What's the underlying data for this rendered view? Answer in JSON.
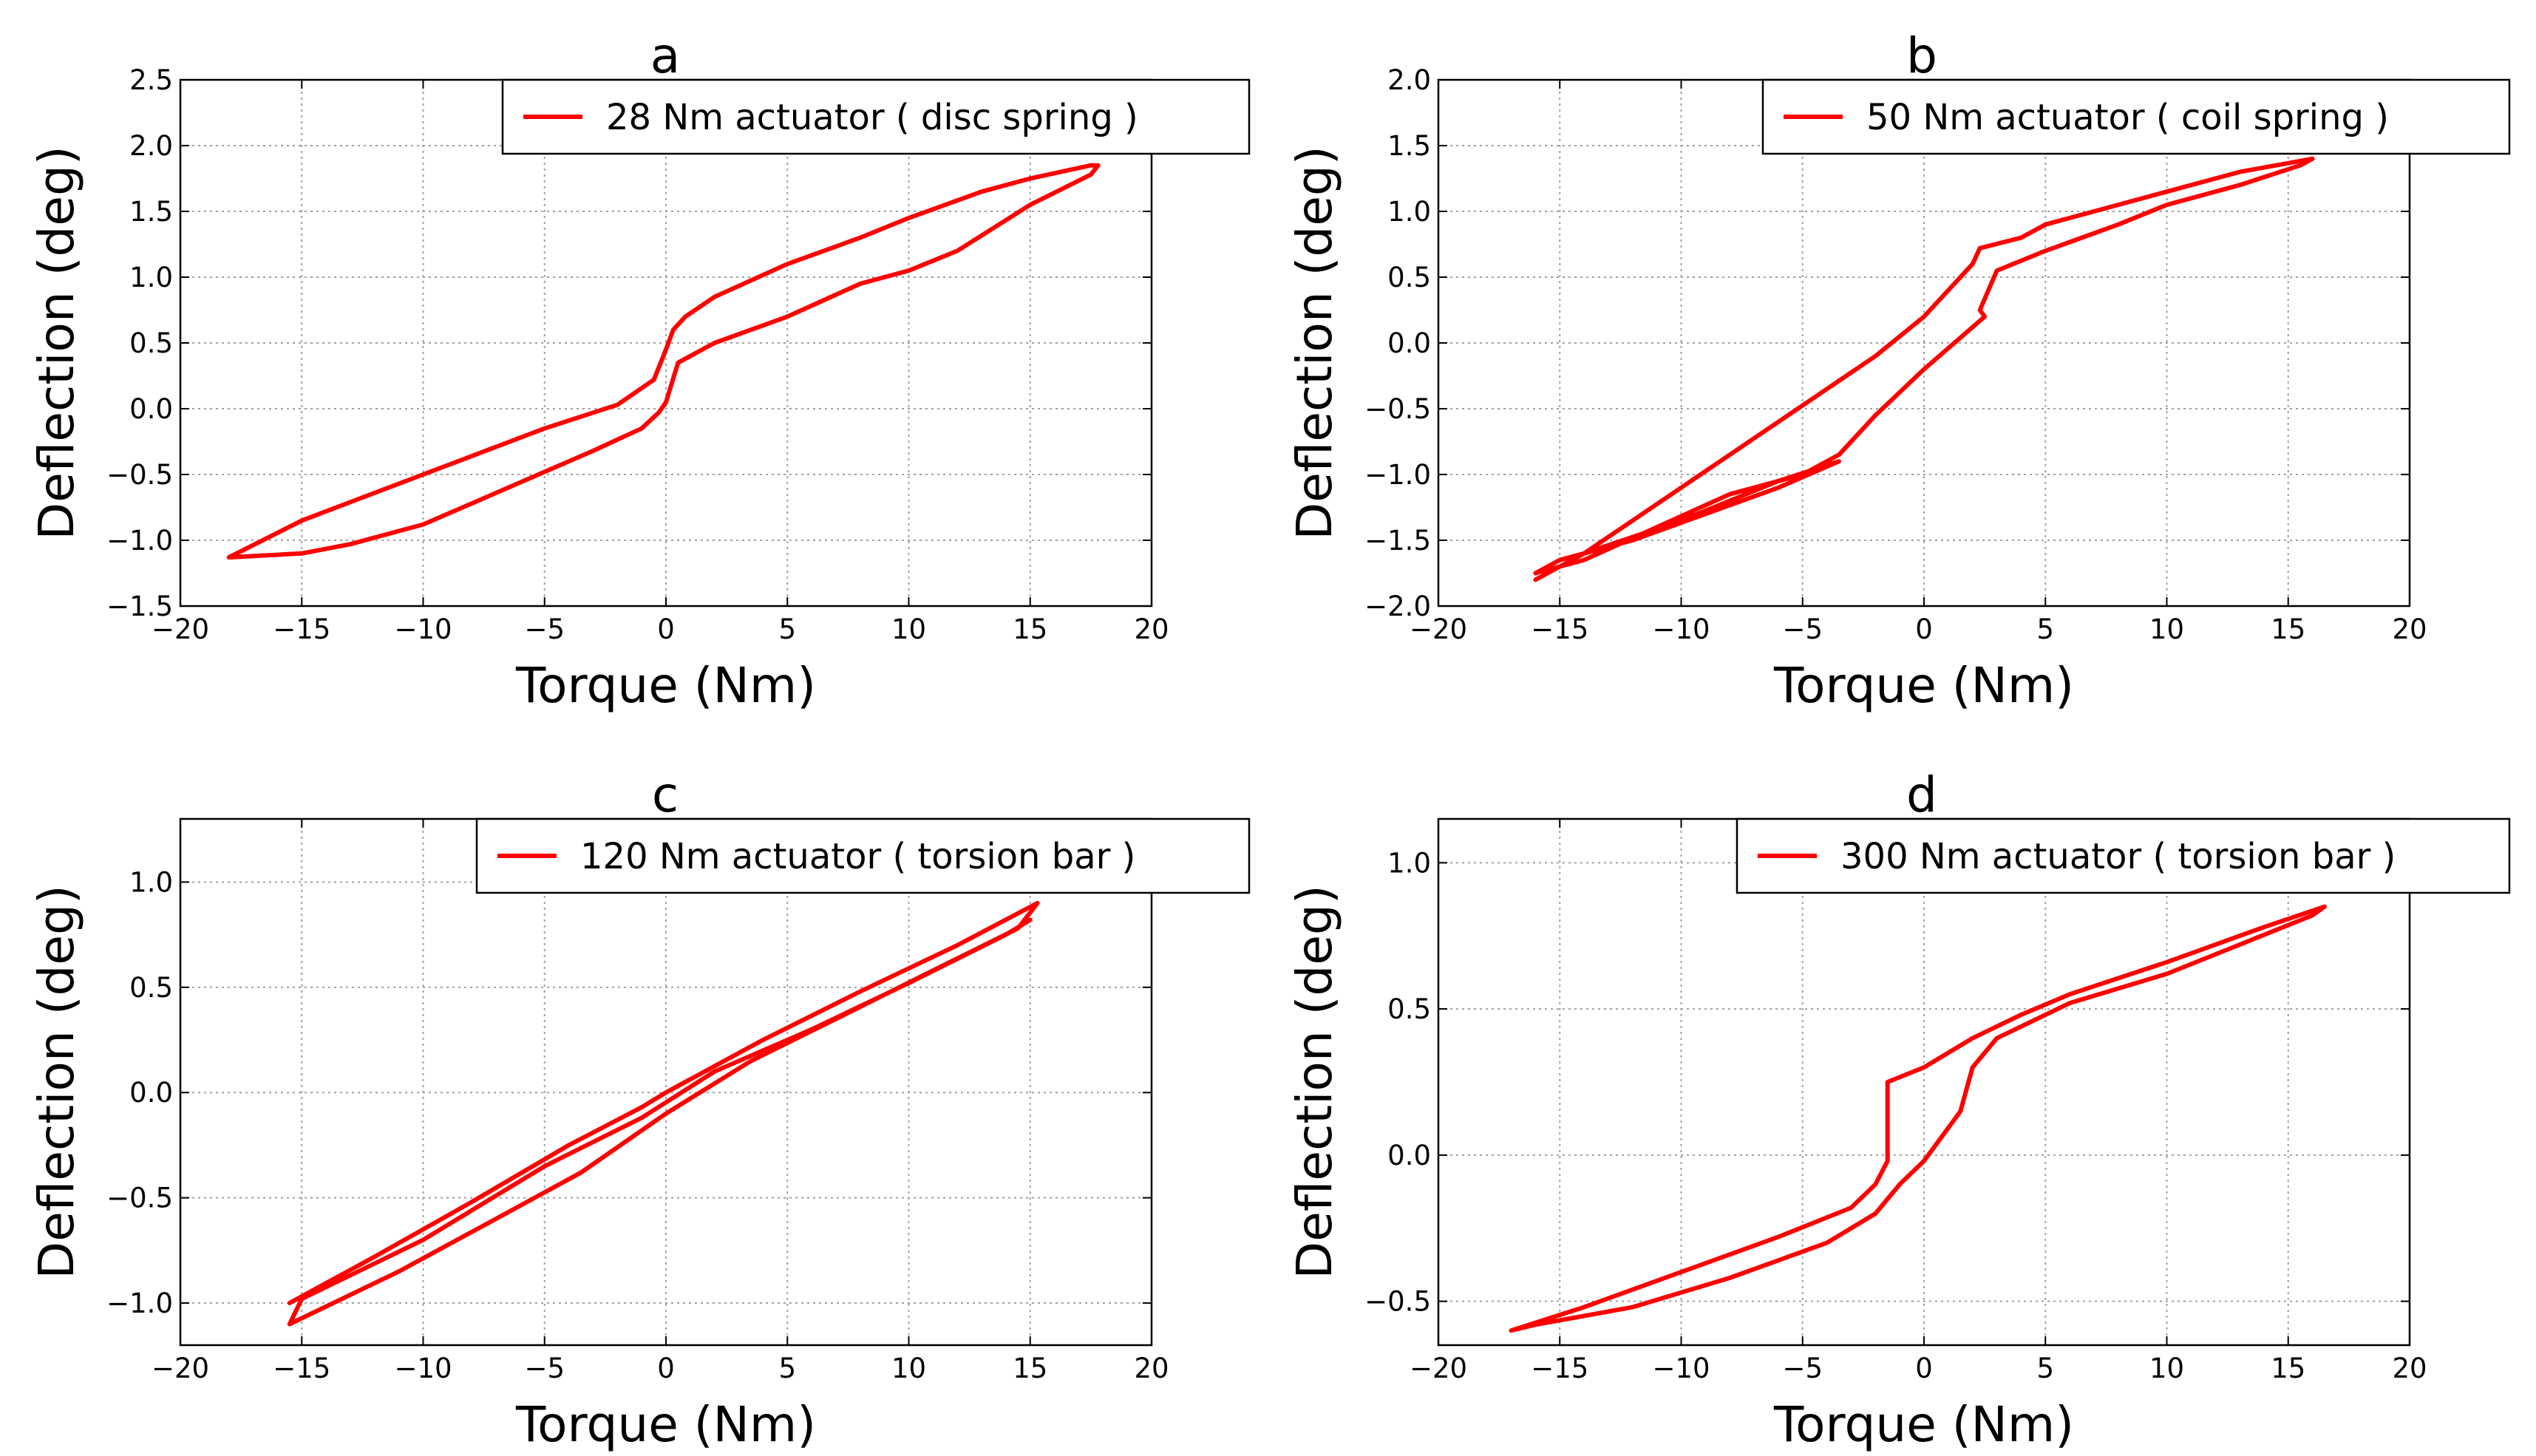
{
  "figure": {
    "line_color": "#ff0000"
  },
  "chart_data": [
    {
      "type": "line",
      "id": "a",
      "title": "a",
      "xlabel": "Torque (Nm)",
      "ylabel": "Deflection (deg)",
      "xlim": [
        -20,
        20
      ],
      "ylim": [
        -1.5,
        2.5
      ],
      "xticks": [
        -20,
        -15,
        -10,
        -5,
        0,
        5,
        10,
        15,
        20
      ],
      "yticks": [
        -1.5,
        -1.0,
        -0.5,
        0.0,
        0.5,
        1.0,
        1.5,
        2.0,
        2.5
      ],
      "xtick_labels": [
        "−20",
        "−15",
        "−10",
        "−5",
        "0",
        "5",
        "10",
        "15",
        "20"
      ],
      "ytick_labels": [
        "−1.5",
        "−1.0",
        "−0.5",
        "0.0",
        "0.5",
        "1.0",
        "1.5",
        "2.0",
        "2.5"
      ],
      "grid": true,
      "legend_position": "top-right",
      "series": [
        {
          "name": "28 Nm actuator ( disc spring )",
          "color": "#ff0000",
          "x": [
            -18,
            -15,
            -10,
            -5,
            -2,
            -0.5,
            0,
            0.3,
            0.8,
            2,
            5,
            8,
            10,
            13,
            15,
            17.5,
            17.8,
            17.5,
            15,
            12,
            10,
            8,
            5,
            2,
            0.5,
            0,
            -0.3,
            -1,
            -3,
            -5,
            -8,
            -10,
            -13,
            -15,
            -18
          ],
          "y": [
            -1.13,
            -0.85,
            -0.5,
            -0.15,
            0.03,
            0.22,
            0.45,
            0.6,
            0.7,
            0.85,
            1.1,
            1.3,
            1.45,
            1.65,
            1.75,
            1.85,
            1.85,
            1.78,
            1.55,
            1.2,
            1.05,
            0.95,
            0.7,
            0.5,
            0.35,
            0.05,
            -0.03,
            -0.15,
            -0.32,
            -0.48,
            -0.72,
            -0.88,
            -1.03,
            -1.1,
            -1.13
          ]
        }
      ]
    },
    {
      "type": "line",
      "id": "b",
      "title": "b",
      "xlabel": "Torque (Nm)",
      "ylabel": "Deflection (deg)",
      "xlim": [
        -20,
        20
      ],
      "ylim": [
        -2.0,
        2.0
      ],
      "xticks": [
        -20,
        -15,
        -10,
        -5,
        0,
        5,
        10,
        15,
        20
      ],
      "yticks": [
        -2.0,
        -1.5,
        -1.0,
        -0.5,
        0.0,
        0.5,
        1.0,
        1.5,
        2.0
      ],
      "xtick_labels": [
        "−20",
        "−15",
        "−10",
        "−5",
        "0",
        "5",
        "10",
        "15",
        "20"
      ],
      "ytick_labels": [
        "−2.0",
        "−1.5",
        "−1.0",
        "−0.5",
        "0.0",
        "0.5",
        "1.0",
        "1.5",
        "2.0"
      ],
      "grid": true,
      "legend_position": "top-right",
      "series": [
        {
          "name": "50 Nm actuator ( coil spring )",
          "color": "#ff0000",
          "x": [
            -16,
            -14,
            -12,
            -10,
            -8,
            -6,
            -4,
            -2,
            0,
            2,
            2.3,
            4,
            5,
            8,
            10,
            13,
            16,
            15.5,
            13,
            10,
            8,
            5,
            3,
            2.3,
            2.5,
            0,
            -2,
            -3.5,
            -5,
            -8,
            -11,
            -14,
            -16,
            -15,
            -12,
            -9,
            -6,
            -3.5,
            -6,
            -10,
            -14,
            -16
          ],
          "y": [
            -1.8,
            -1.6,
            -1.35,
            -1.1,
            -0.85,
            -0.6,
            -0.35,
            -0.1,
            0.2,
            0.6,
            0.72,
            0.8,
            0.9,
            1.05,
            1.15,
            1.3,
            1.4,
            1.35,
            1.2,
            1.05,
            0.9,
            0.7,
            0.55,
            0.25,
            0.2,
            -0.2,
            -0.55,
            -0.85,
            -1.0,
            -1.15,
            -1.4,
            -1.65,
            -1.75,
            -1.65,
            -1.5,
            -1.3,
            -1.1,
            -0.9,
            -1.05,
            -1.35,
            -1.6,
            -1.8
          ]
        }
      ]
    },
    {
      "type": "line",
      "id": "c",
      "title": "c",
      "xlabel": "Torque (Nm)",
      "ylabel": "Deflection (deg)",
      "xlim": [
        -20,
        20
      ],
      "ylim": [
        -1.2,
        1.3
      ],
      "xticks": [
        -20,
        -15,
        -10,
        -5,
        0,
        5,
        10,
        15,
        20
      ],
      "yticks": [
        -1.0,
        -0.5,
        0.0,
        0.5,
        1.0
      ],
      "xtick_labels": [
        "−20",
        "−15",
        "−10",
        "−5",
        "0",
        "5",
        "10",
        "15",
        "20"
      ],
      "ytick_labels": [
        "−1.0",
        "−0.5",
        "0.0",
        "0.5",
        "1.0"
      ],
      "grid": true,
      "legend_position": "top-right",
      "series": [
        {
          "name": "120 Nm actuator ( torsion bar )",
          "color": "#ff0000",
          "x": [
            -15.5,
            -12,
            -8,
            -4,
            -1,
            0,
            4,
            8,
            12,
            15.3,
            14.5,
            11,
            7,
            3.5,
            0,
            -3.5,
            -7,
            -11,
            -15.5,
            -15,
            -10,
            -5,
            -1,
            2,
            6,
            10,
            14,
            15
          ],
          "y": [
            -1.0,
            -0.78,
            -0.52,
            -0.25,
            -0.07,
            0.0,
            0.25,
            0.48,
            0.7,
            0.9,
            0.78,
            0.58,
            0.35,
            0.15,
            -0.1,
            -0.38,
            -0.6,
            -0.85,
            -1.1,
            -0.98,
            -0.7,
            -0.35,
            -0.12,
            0.1,
            0.3,
            0.52,
            0.75,
            0.82
          ]
        }
      ]
    },
    {
      "type": "line",
      "id": "d",
      "title": "d",
      "xlabel": "Torque (Nm)",
      "ylabel": "Deflection (deg)",
      "xlim": [
        -20,
        20
      ],
      "ylim": [
        -0.65,
        1.15
      ],
      "xticks": [
        -20,
        -15,
        -10,
        -5,
        0,
        5,
        10,
        15,
        20
      ],
      "yticks": [
        -0.5,
        0.0,
        0.5,
        1.0
      ],
      "xtick_labels": [
        "−20",
        "−15",
        "−10",
        "−5",
        "0",
        "5",
        "10",
        "15",
        "20"
      ],
      "ytick_labels": [
        "−0.5",
        "0.0",
        "0.5",
        "1.0"
      ],
      "grid": true,
      "legend_position": "top-right",
      "series": [
        {
          "name": "300 Nm actuator ( torsion bar )",
          "color": "#ff0000",
          "x": [
            -17,
            -14,
            -10,
            -6,
            -3,
            -2,
            -1.5,
            -1.5,
            0,
            2,
            4,
            6,
            10,
            14,
            16.5,
            16,
            13,
            10,
            6,
            3,
            2,
            1.5,
            0,
            -1,
            -2,
            -4,
            -8,
            -12,
            -16,
            -17
          ],
          "y": [
            -0.6,
            -0.52,
            -0.4,
            -0.28,
            -0.18,
            -0.1,
            -0.02,
            0.25,
            0.3,
            0.4,
            0.48,
            0.55,
            0.66,
            0.78,
            0.85,
            0.82,
            0.72,
            0.62,
            0.52,
            0.4,
            0.3,
            0.15,
            -0.02,
            -0.1,
            -0.2,
            -0.3,
            -0.42,
            -0.52,
            -0.58,
            -0.6
          ]
        }
      ]
    }
  ]
}
